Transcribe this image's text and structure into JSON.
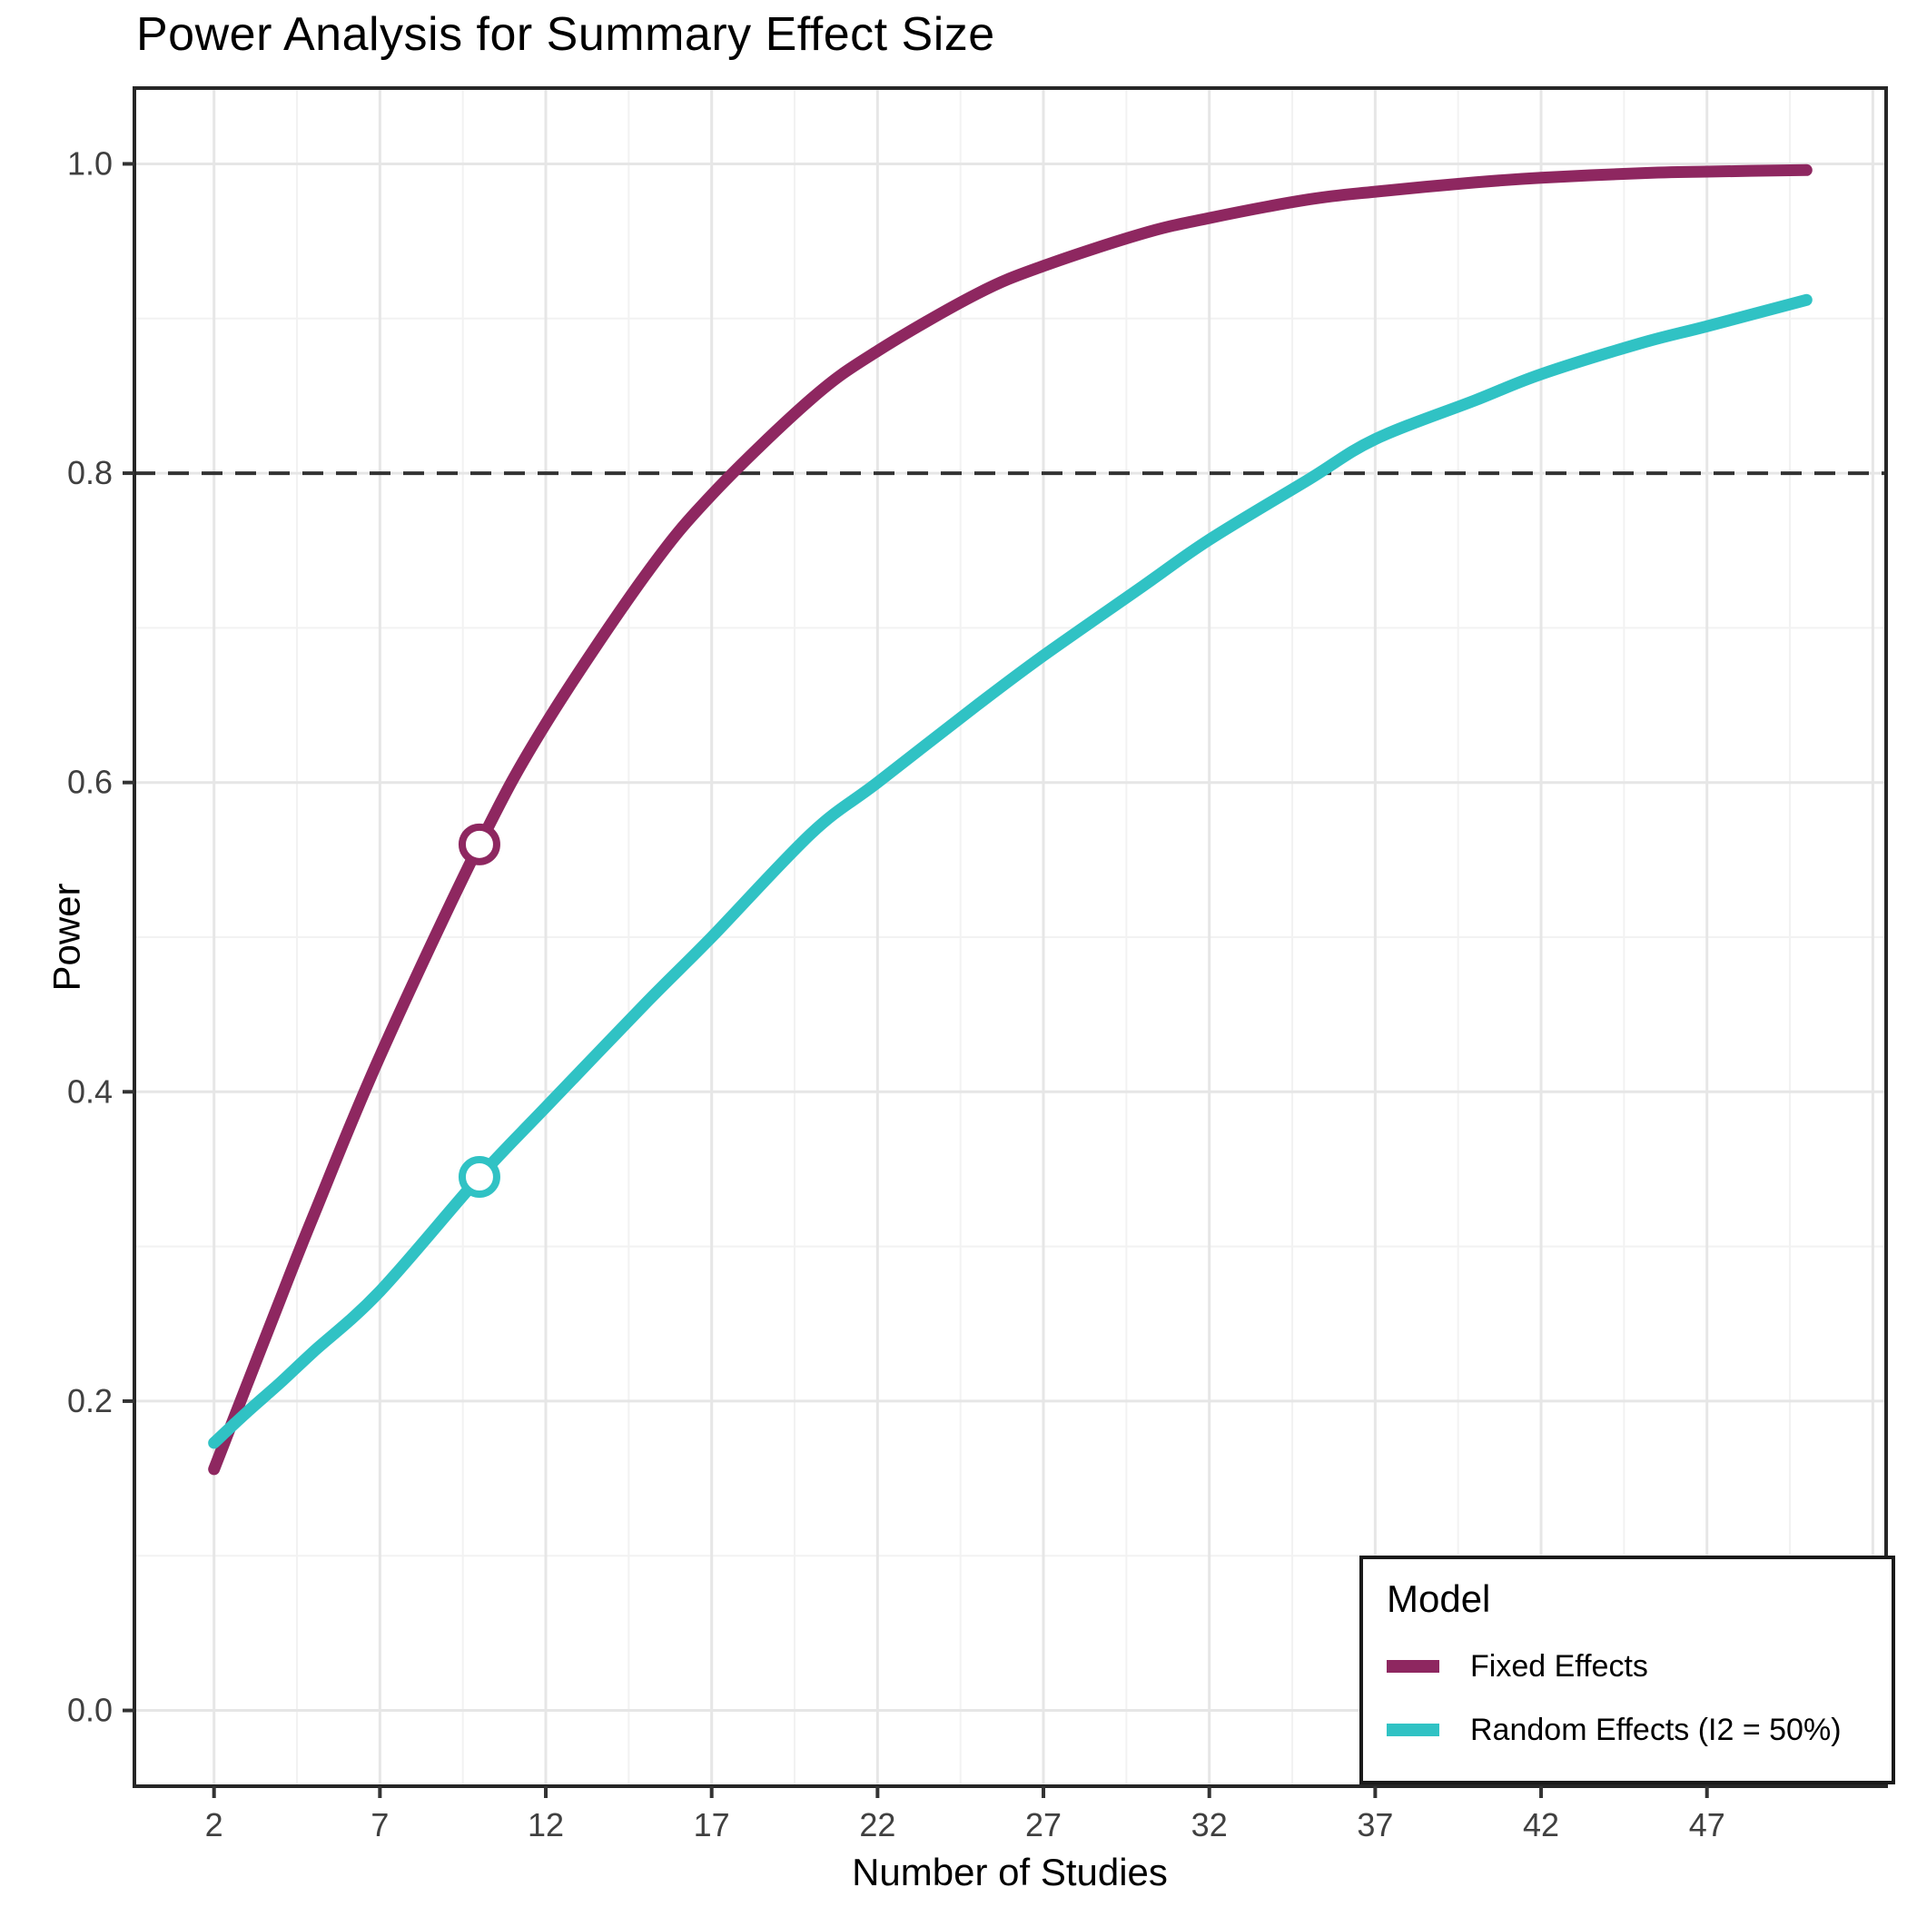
{
  "title": "Power Analysis for Summary Effect Size",
  "x_axis": {
    "label": "Number of Studies",
    "ticks": [
      2,
      7,
      12,
      17,
      22,
      27,
      32,
      37,
      42,
      47
    ],
    "gridlines_major": [
      2,
      7,
      12,
      17,
      22,
      27,
      32,
      37,
      42,
      47,
      52
    ],
    "gridlines_minor": [
      4.5,
      9.5,
      14.5,
      19.5,
      24.5,
      29.5,
      34.5,
      39.5,
      44.5,
      49.5
    ],
    "range": [
      -0.4,
      52.4
    ]
  },
  "y_axis": {
    "label": "Power",
    "ticks": [
      "0.0",
      "0.2",
      "0.4",
      "0.6",
      "0.8",
      "1.0"
    ],
    "tick_values": [
      0.0,
      0.2,
      0.4,
      0.6,
      0.8,
      1.0
    ],
    "gridlines_minor": [
      0.1,
      0.3,
      0.5,
      0.7,
      0.9
    ],
    "range": [
      -0.049,
      1.049
    ]
  },
  "reference_line": {
    "y": 0.8,
    "style": "dashed",
    "color": "#333333"
  },
  "legend": {
    "title": "Model",
    "items": [
      {
        "label": "Fixed Effects",
        "color": "#8E2760"
      },
      {
        "label": "Random Effects (I2 = 50%)",
        "color": "#30C2C4"
      }
    ]
  },
  "colors": {
    "grid_major": "#E6E6E6",
    "grid_minor": "#F2F2F2",
    "panel_border": "#262626",
    "tick_mark": "#333333",
    "tick_label": "#404040",
    "marker_fill": "#FFFFFF"
  },
  "chart_data": {
    "type": "line",
    "title": "Power Analysis for Summary Effect Size",
    "xlabel": "Number of Studies",
    "ylabel": "Power",
    "xlim": [
      -0.4,
      52.4
    ],
    "ylim": [
      -0.049,
      1.049
    ],
    "grid": true,
    "legend_position": "bottom-right-inset",
    "x": [
      2,
      3,
      4,
      5,
      7,
      10,
      12,
      15,
      17,
      20,
      22,
      25,
      27,
      30,
      32,
      35,
      37,
      40,
      42,
      45,
      47,
      50
    ],
    "series": [
      {
        "name": "Fixed Effects",
        "color": "#8E2760",
        "values": [
          0.156,
          0.211,
          0.266,
          0.32,
          0.423,
          0.56,
          0.638,
          0.734,
          0.786,
          0.848,
          0.879,
          0.916,
          0.934,
          0.955,
          0.965,
          0.977,
          0.982,
          0.988,
          0.991,
          0.994,
          0.995,
          0.996
        ],
        "marker": {
          "x": 10,
          "y": 0.56
        }
      },
      {
        "name": "Random Effects (I2 = 50%)",
        "color": "#30C2C4",
        "values": [
          0.173,
          0.193,
          0.212,
          0.232,
          0.271,
          0.345,
          0.39,
          0.457,
          0.5,
          0.567,
          0.6,
          0.65,
          0.682,
          0.727,
          0.757,
          0.796,
          0.822,
          0.847,
          0.864,
          0.884,
          0.895,
          0.912
        ],
        "marker": {
          "x": 10,
          "y": 0.345
        }
      }
    ],
    "annotations": [
      {
        "type": "hline",
        "y": 0.8,
        "style": "dashed"
      }
    ]
  }
}
